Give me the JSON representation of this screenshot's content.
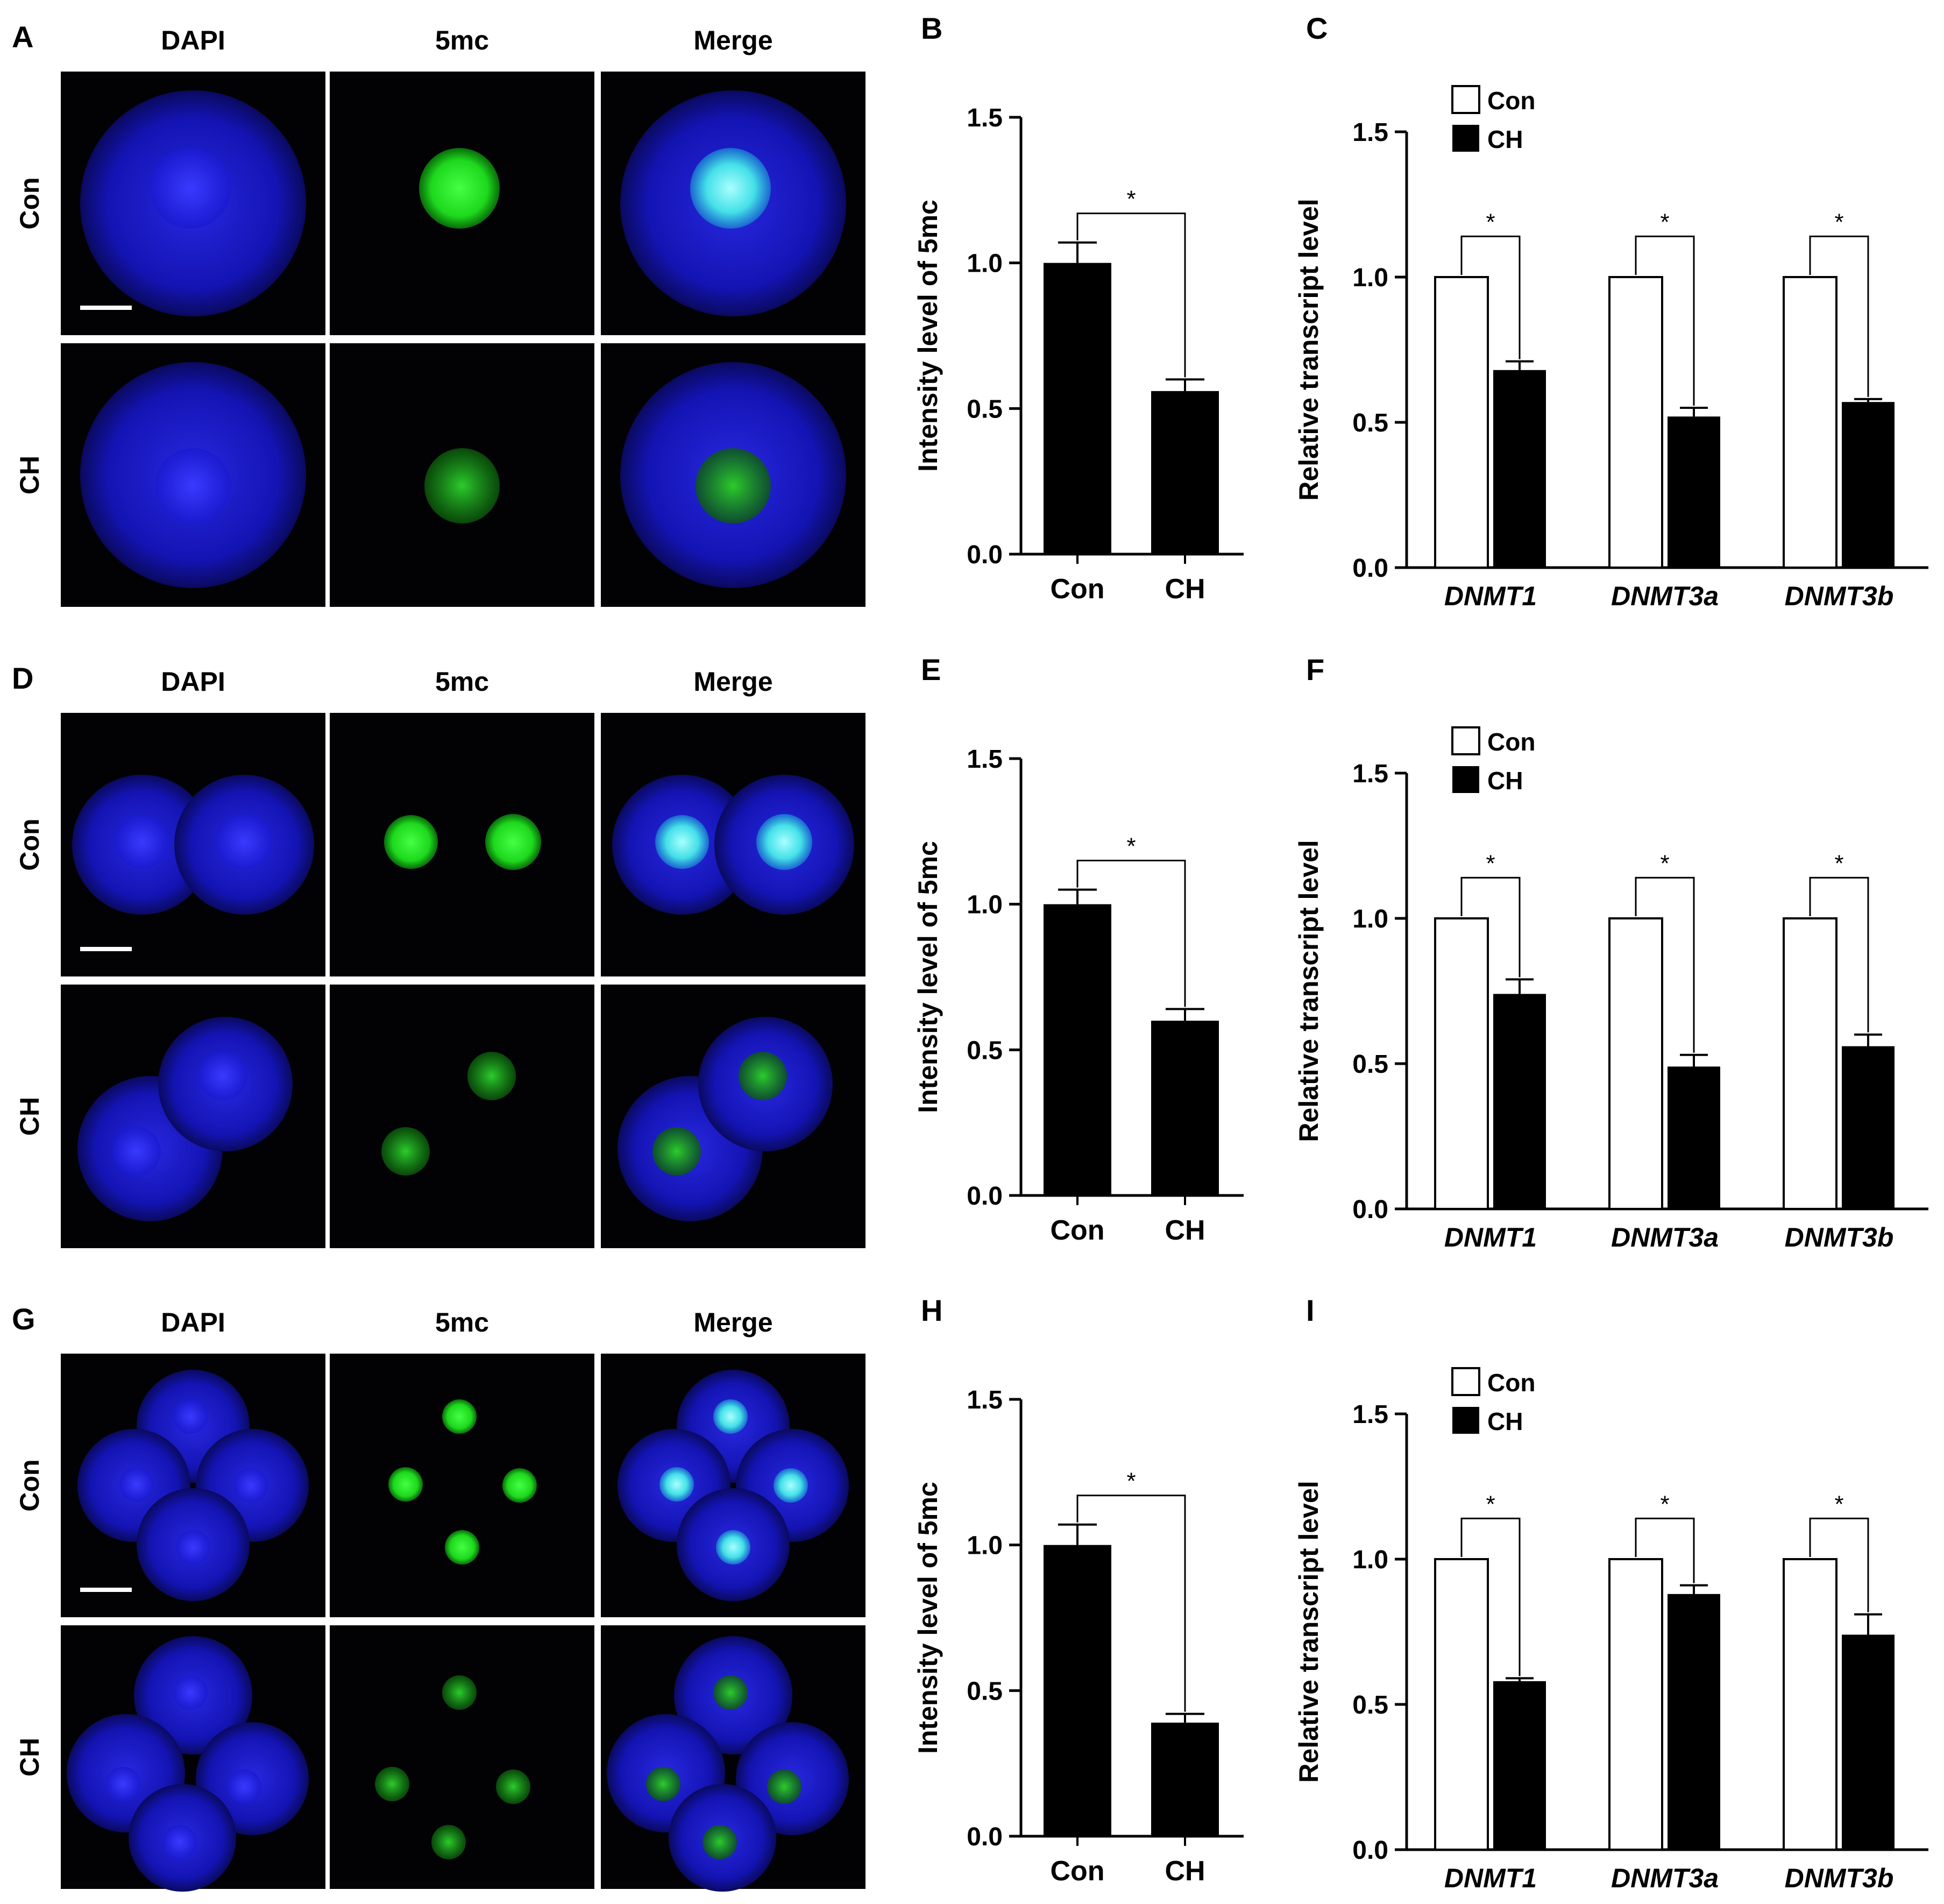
{
  "rows": [
    {
      "micro_letter": "A",
      "bar_letter": "B",
      "tx_letter": "C",
      "stage": "1-cell",
      "col_headers": [
        "DAPI",
        "5mc",
        "Merge"
      ],
      "row_labels": [
        "Con",
        "CH"
      ]
    },
    {
      "micro_letter": "D",
      "bar_letter": "E",
      "tx_letter": "F",
      "stage": "2-cell",
      "col_headers": [
        "DAPI",
        "5mc",
        "Merge"
      ],
      "row_labels": [
        "Con",
        "CH"
      ]
    },
    {
      "micro_letter": "G",
      "bar_letter": "H",
      "tx_letter": "I",
      "stage": "4-cell",
      "col_headers": [
        "DAPI",
        "5mc",
        "Merge"
      ],
      "row_labels": [
        "Con",
        "CH"
      ]
    }
  ],
  "colors": {
    "dapi": "#1b1bd8",
    "green": "#22e622",
    "merge_nuc": "#5ef0f0",
    "bar": "#000000",
    "open_bar": "#ffffff"
  },
  "chart_data": [
    {
      "panel": "B",
      "type": "bar",
      "categories": [
        "Con",
        "CH"
      ],
      "values": [
        1.0,
        0.56
      ],
      "errors": [
        0.07,
        0.04
      ],
      "ylabel": "Intensity level of 5mc",
      "ylim": [
        0,
        1.5
      ],
      "yticks": [
        "0.0",
        "0.5",
        "1.0",
        "1.5"
      ],
      "significance": [
        {
          "between": [
            "Con",
            "CH"
          ],
          "label": "*"
        }
      ]
    },
    {
      "panel": "C",
      "type": "bar",
      "categories": [
        "DNMT1",
        "DNMT3a",
        "DNMT3b"
      ],
      "series": [
        {
          "name": "Con",
          "values": [
            1.0,
            1.0,
            1.0
          ],
          "errors": [
            0,
            0,
            0
          ]
        },
        {
          "name": "CH",
          "values": [
            0.68,
            0.52,
            0.57
          ],
          "errors": [
            0.03,
            0.03,
            0.01
          ]
        }
      ],
      "ylabel": "Relative transcript level",
      "ylim": [
        0,
        1.5
      ],
      "yticks": [
        "0.0",
        "0.5",
        "1.0",
        "1.5"
      ],
      "legend": "top-left",
      "significance_label": "*"
    },
    {
      "panel": "E",
      "type": "bar",
      "categories": [
        "Con",
        "CH"
      ],
      "values": [
        1.0,
        0.6
      ],
      "errors": [
        0.05,
        0.04
      ],
      "ylabel": "Intensity level of 5mc",
      "ylim": [
        0,
        1.5
      ],
      "yticks": [
        "0.0",
        "0.5",
        "1.0",
        "1.5"
      ],
      "significance": [
        {
          "between": [
            "Con",
            "CH"
          ],
          "label": "*"
        }
      ]
    },
    {
      "panel": "F",
      "type": "bar",
      "categories": [
        "DNMT1",
        "DNMT3a",
        "DNMT3b"
      ],
      "series": [
        {
          "name": "Con",
          "values": [
            1.0,
            1.0,
            1.0
          ],
          "errors": [
            0,
            0,
            0
          ]
        },
        {
          "name": "CH",
          "values": [
            0.74,
            0.49,
            0.56
          ],
          "errors": [
            0.05,
            0.04,
            0.04
          ]
        }
      ],
      "ylabel": "Relative transcript level",
      "ylim": [
        0,
        1.5
      ],
      "yticks": [
        "0.0",
        "0.5",
        "1.0",
        "1.5"
      ],
      "legend": "top-left",
      "significance_label": "*"
    },
    {
      "panel": "H",
      "type": "bar",
      "categories": [
        "Con",
        "CH"
      ],
      "values": [
        1.0,
        0.39
      ],
      "errors": [
        0.07,
        0.03
      ],
      "ylabel": "Intensity level of 5mc",
      "ylim": [
        0,
        1.5
      ],
      "yticks": [
        "0.0",
        "0.5",
        "1.0",
        "1.5"
      ],
      "significance": [
        {
          "between": [
            "Con",
            "CH"
          ],
          "label": "*"
        }
      ]
    },
    {
      "panel": "I",
      "type": "bar",
      "categories": [
        "DNMT1",
        "DNMT3a",
        "DNMT3b"
      ],
      "series": [
        {
          "name": "Con",
          "values": [
            1.0,
            1.0,
            1.0
          ],
          "errors": [
            0,
            0,
            0
          ]
        },
        {
          "name": "CH",
          "values": [
            0.58,
            0.88,
            0.74
          ],
          "errors": [
            0.01,
            0.03,
            0.07
          ]
        }
      ],
      "ylabel": "Relative transcript level",
      "ylim": [
        0,
        1.5
      ],
      "yticks": [
        "0.0",
        "0.5",
        "1.0",
        "1.5"
      ],
      "legend": "top-left",
      "significance_label": "*"
    }
  ]
}
